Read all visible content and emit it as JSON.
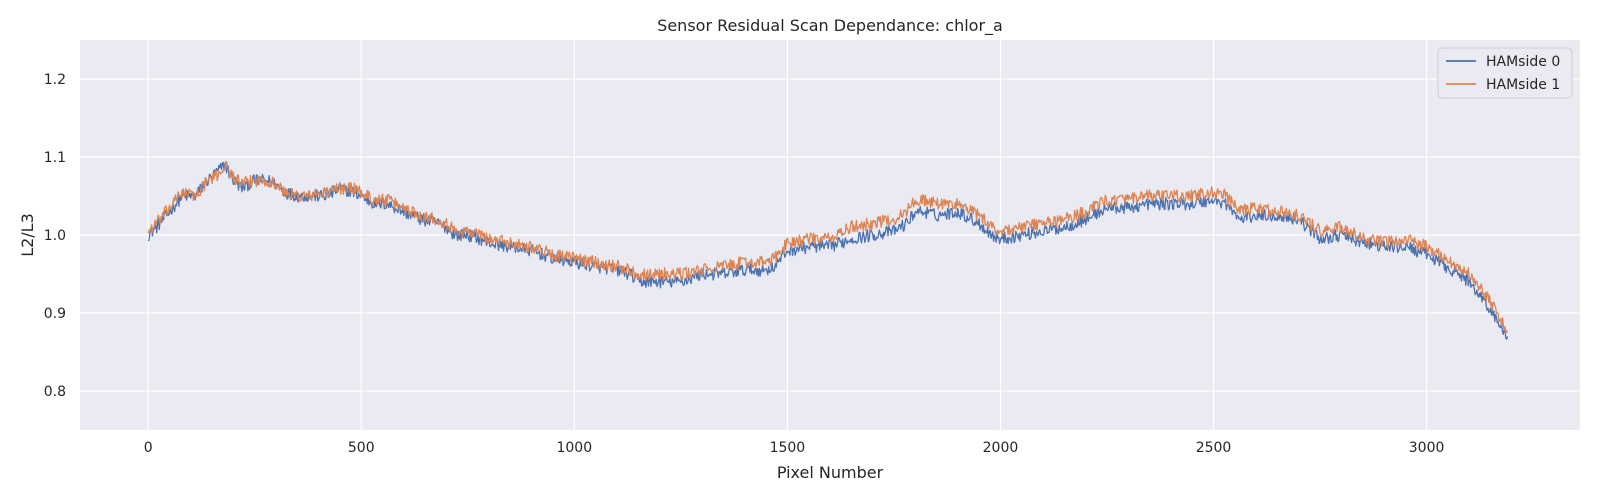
{
  "chart_data": {
    "type": "line",
    "title": "Sensor Residual Scan Dependance: chlor_a",
    "xlabel": "Pixel Number",
    "ylabel": "L2/L3",
    "xlim": [
      -160,
      3360
    ],
    "ylim": [
      0.75,
      1.25
    ],
    "xticks": [
      0,
      500,
      1000,
      1500,
      2000,
      2500,
      3000
    ],
    "yticks": [
      0.8,
      0.9,
      1.0,
      1.1,
      1.2
    ],
    "xtick_labels": [
      "0",
      "500",
      "1000",
      "1500",
      "2000",
      "2500",
      "3000"
    ],
    "ytick_labels": [
      "0.8",
      "0.9",
      "1.0",
      "1.1",
      "1.2"
    ],
    "grid": true,
    "legend_position": "top-right",
    "series": [
      {
        "name": "HAMside 0",
        "color": "#4c72b0",
        "x": [
          0,
          20,
          50,
          80,
          110,
          140,
          160,
          180,
          200,
          220,
          250,
          280,
          300,
          320,
          350,
          380,
          420,
          450,
          480,
          500,
          530,
          560,
          600,
          640,
          680,
          700,
          720,
          750,
          780,
          800,
          850,
          900,
          950,
          1000,
          1050,
          1100,
          1130,
          1150,
          1200,
          1250,
          1300,
          1350,
          1400,
          1450,
          1470,
          1500,
          1550,
          1600,
          1650,
          1700,
          1750,
          1780,
          1800,
          1820,
          1850,
          1900,
          1950,
          1980,
          2000,
          2050,
          2100,
          2150,
          2200,
          2250,
          2300,
          2350,
          2400,
          2450,
          2500,
          2530,
          2560,
          2600,
          2650,
          2700,
          2750,
          2800,
          2850,
          2900,
          2950,
          3000,
          3030,
          3060,
          3100,
          3130,
          3160,
          3190
        ],
        "y": [
          1.0,
          1.01,
          1.03,
          1.05,
          1.05,
          1.07,
          1.08,
          1.09,
          1.07,
          1.06,
          1.07,
          1.07,
          1.065,
          1.055,
          1.05,
          1.05,
          1.05,
          1.06,
          1.055,
          1.05,
          1.04,
          1.04,
          1.03,
          1.02,
          1.015,
          1.01,
          1.0,
          1.0,
          0.995,
          0.99,
          0.985,
          0.98,
          0.97,
          0.965,
          0.96,
          0.955,
          0.95,
          0.94,
          0.94,
          0.94,
          0.95,
          0.95,
          0.955,
          0.955,
          0.96,
          0.98,
          0.985,
          0.985,
          0.995,
          1.0,
          1.005,
          1.015,
          1.03,
          1.03,
          1.025,
          1.03,
          1.015,
          1.0,
          0.995,
          1.0,
          1.005,
          1.01,
          1.02,
          1.035,
          1.035,
          1.04,
          1.04,
          1.04,
          1.045,
          1.04,
          1.02,
          1.025,
          1.025,
          1.02,
          0.995,
          1.0,
          0.99,
          0.985,
          0.985,
          0.975,
          0.965,
          0.955,
          0.94,
          0.92,
          0.895,
          0.87
        ]
      },
      {
        "name": "HAMside 1",
        "color": "#dd8452",
        "x": [
          0,
          20,
          50,
          80,
          110,
          140,
          160,
          180,
          200,
          220,
          250,
          280,
          300,
          320,
          350,
          380,
          420,
          450,
          480,
          500,
          530,
          560,
          600,
          640,
          680,
          700,
          720,
          750,
          780,
          800,
          850,
          900,
          950,
          1000,
          1050,
          1100,
          1130,
          1150,
          1200,
          1250,
          1300,
          1350,
          1400,
          1450,
          1470,
          1500,
          1550,
          1600,
          1650,
          1700,
          1750,
          1780,
          1800,
          1820,
          1850,
          1900,
          1950,
          1980,
          2000,
          2050,
          2100,
          2150,
          2200,
          2250,
          2300,
          2350,
          2400,
          2450,
          2500,
          2530,
          2560,
          2600,
          2650,
          2700,
          2750,
          2800,
          2850,
          2900,
          2950,
          3000,
          3030,
          3060,
          3100,
          3130,
          3160,
          3190
        ],
        "y": [
          1.005,
          1.015,
          1.035,
          1.055,
          1.05,
          1.07,
          1.075,
          1.09,
          1.075,
          1.065,
          1.07,
          1.07,
          1.065,
          1.055,
          1.05,
          1.05,
          1.055,
          1.06,
          1.06,
          1.055,
          1.045,
          1.045,
          1.035,
          1.025,
          1.02,
          1.015,
          1.005,
          1.005,
          1.0,
          0.995,
          0.99,
          0.985,
          0.975,
          0.97,
          0.965,
          0.96,
          0.955,
          0.95,
          0.95,
          0.95,
          0.955,
          0.96,
          0.965,
          0.965,
          0.97,
          0.99,
          0.995,
          0.995,
          1.01,
          1.015,
          1.02,
          1.03,
          1.045,
          1.045,
          1.04,
          1.04,
          1.025,
          1.01,
          1.005,
          1.01,
          1.015,
          1.02,
          1.03,
          1.045,
          1.045,
          1.05,
          1.05,
          1.05,
          1.055,
          1.05,
          1.03,
          1.035,
          1.03,
          1.025,
          1.005,
          1.01,
          0.995,
          0.99,
          0.995,
          0.985,
          0.975,
          0.965,
          0.95,
          0.93,
          0.905,
          0.875
        ]
      }
    ]
  }
}
